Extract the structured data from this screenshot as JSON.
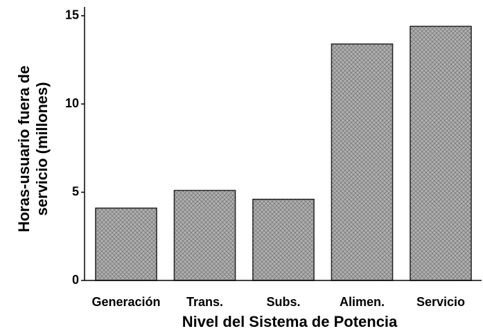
{
  "chart_data": {
    "type": "bar",
    "x_label": "Nivel del Sistema de Potencia",
    "y_label": [
      "Horas-usuario fuera de",
      "servicio (millones)"
    ],
    "categories": [
      "Generación",
      "Trans.",
      "Subs.",
      "Alimen.",
      "Servicio"
    ],
    "values": [
      4.1,
      5.1,
      4.6,
      13.4,
      14.4
    ],
    "color": "#a8a8a8",
    "ylim": [
      0,
      15.5
    ],
    "yticks": [
      0,
      5,
      10,
      15
    ],
    "grid": false
  }
}
